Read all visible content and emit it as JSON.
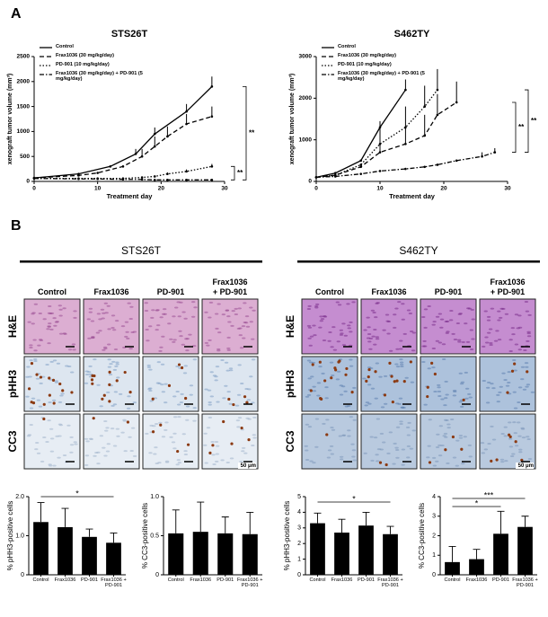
{
  "panel_labels": [
    "A",
    "B"
  ],
  "chart_data": [
    {
      "type": "line",
      "title": "STS26T",
      "xlabel": "Treatment day",
      "ylabel": "xenograft tumor volume (mm³)",
      "xlim": [
        0,
        30
      ],
      "xticks": [
        0,
        10,
        20,
        30
      ],
      "ylim": [
        0,
        2500
      ],
      "yticks": [
        0,
        500,
        1000,
        1500,
        2000,
        2500
      ],
      "legend": "upper left",
      "annotations": [
        "**",
        "**"
      ],
      "series": [
        {
          "name": "Control",
          "color": "#000000",
          "dash": "solid",
          "x": [
            0,
            7,
            12,
            16,
            19,
            24,
            28
          ],
          "values": [
            70,
            150,
            300,
            550,
            950,
            1400,
            1900
          ],
          "errors": [
            null,
            null,
            null,
            100,
            130,
            150,
            200
          ]
        },
        {
          "name": "Frax1036 (30 mg/kg/day)",
          "color": "#000000",
          "dash": "dashed",
          "x": [
            0,
            7,
            10,
            14,
            17,
            19,
            21,
            24,
            28
          ],
          "values": [
            70,
            120,
            170,
            300,
            500,
            700,
            900,
            1150,
            1300
          ],
          "errors": [
            null,
            null,
            null,
            null,
            150,
            200,
            200,
            200,
            200
          ]
        },
        {
          "name": "PD-901 (10 mg/kg/day)",
          "color": "#000000",
          "dash": "dotted",
          "x": [
            0,
            7,
            10,
            14,
            17,
            19,
            21,
            24,
            28
          ],
          "values": [
            60,
            60,
            60,
            60,
            80,
            100,
            150,
            200,
            300
          ],
          "errors": [
            null,
            null,
            null,
            null,
            null,
            null,
            30,
            40,
            50
          ]
        },
        {
          "name": "Frax1036 (30 mg/kg/day) + PD-901 (5 mg/kg/day)",
          "color": "#000000",
          "dash": "dashdot",
          "x": [
            0,
            7,
            10,
            14,
            17,
            19,
            21,
            24,
            28
          ],
          "values": [
            60,
            50,
            50,
            40,
            40,
            30,
            30,
            30,
            30
          ],
          "errors": [
            null,
            null,
            null,
            null,
            null,
            null,
            null,
            null,
            null
          ]
        }
      ]
    },
    {
      "type": "line",
      "title": "S462TY",
      "xlabel": "Treatment day",
      "ylabel": "xenograft tumor volume (mm³)",
      "xlim": [
        0,
        30
      ],
      "xticks": [
        0,
        10,
        20,
        30
      ],
      "ylim": [
        0,
        3000
      ],
      "yticks": [
        0,
        1000,
        2000,
        3000
      ],
      "legend": "upper left",
      "annotations": [
        "**",
        "**"
      ],
      "series": [
        {
          "name": "Control",
          "color": "#000000",
          "dash": "solid",
          "x": [
            0,
            3,
            7,
            10,
            14
          ],
          "values": [
            100,
            200,
            500,
            1300,
            2200
          ],
          "errors": [
            null,
            null,
            null,
            150,
            250
          ]
        },
        {
          "name": "Frax1036 (30 mg/kg/day)",
          "color": "#000000",
          "dash": "dashed",
          "x": [
            0,
            3,
            7,
            10,
            14,
            17,
            19,
            22
          ],
          "values": [
            100,
            150,
            350,
            700,
            900,
            1100,
            1600,
            1900
          ],
          "errors": [
            null,
            null,
            null,
            300,
            400,
            500,
            500,
            500
          ]
        },
        {
          "name": "PD-901 (10 mg/kg/day)",
          "color": "#000000",
          "dash": "dotted",
          "x": [
            0,
            3,
            7,
            10,
            14,
            17,
            19
          ],
          "values": [
            100,
            150,
            400,
            900,
            1300,
            1800,
            2200
          ],
          "errors": [
            null,
            null,
            null,
            400,
            500,
            500,
            500
          ]
        },
        {
          "name": "Frax1036 (30 mg/kg/day) + PD-901 (5 mg/kg/day)",
          "color": "#000000",
          "dash": "dashdot",
          "x": [
            0,
            3,
            7,
            10,
            14,
            17,
            19,
            22,
            26,
            28
          ],
          "values": [
            100,
            120,
            180,
            250,
            300,
            350,
            400,
            500,
            600,
            700
          ],
          "errors": [
            null,
            null,
            null,
            null,
            null,
            null,
            null,
            null,
            100,
            100
          ]
        }
      ]
    },
    {
      "type": "bar",
      "ylabel": "% pHH3-positive cells",
      "categories": [
        "Control",
        "Frax1036",
        "PD-901",
        "Frax1036 + PD-901"
      ],
      "values": [
        1.35,
        1.22,
        0.97,
        0.82
      ],
      "errors": [
        0.5,
        0.48,
        0.2,
        0.25
      ],
      "color": "#000000",
      "ylim": [
        0,
        2
      ],
      "yticks": [
        0,
        {
          "value": 1,
          "label": "1.0"
        },
        {
          "value": 2,
          "label": "2.0"
        }
      ],
      "annotations": [
        "*"
      ]
    },
    {
      "type": "bar",
      "ylabel": "% CC3-positive cells",
      "categories": [
        "Control",
        "Frax1036",
        "PD-901",
        "Frax1036 + PD-901"
      ],
      "values": [
        0.53,
        0.55,
        0.53,
        0.52
      ],
      "errors": [
        0.3,
        0.38,
        0.21,
        0.28
      ],
      "color": "#000000",
      "ylim": [
        0,
        1
      ],
      "yticks": [
        0,
        0.5,
        {
          "value": 1,
          "label": "1.0"
        }
      ],
      "annotations": []
    },
    {
      "type": "bar",
      "ylabel": "% pHH3-positive cells",
      "categories": [
        "Control",
        "Frax1036",
        "PD-901",
        "Frax1036 + PD-901"
      ],
      "values": [
        3.3,
        2.7,
        3.15,
        2.6
      ],
      "errors": [
        0.65,
        0.85,
        0.85,
        0.5
      ],
      "color": "#000000",
      "ylim": [
        0,
        5
      ],
      "yticks": [
        0,
        1,
        2,
        3,
        4,
        5
      ],
      "annotations": [
        "*"
      ]
    },
    {
      "type": "bar",
      "ylabel": "% CC3-positive cells",
      "categories": [
        "Control",
        "Frax1036",
        "PD-901",
        "Frax1036 + PD-901"
      ],
      "values": [
        0.65,
        0.8,
        2.1,
        2.45
      ],
      "errors": [
        0.8,
        0.5,
        1.15,
        0.55
      ],
      "color": "#000000",
      "ylim": [
        0,
        4
      ],
      "yticks": [
        0,
        1,
        2,
        3,
        4
      ],
      "annotations": [
        "***",
        "*"
      ]
    }
  ],
  "histology": [
    {
      "title": "STS26T",
      "columns": [
        "Control",
        "Frax1036",
        "PD-901",
        "Frax1036 + PD-901"
      ],
      "rows": [
        "H&E",
        "pHH3",
        "CC3"
      ],
      "scale_bar": "50 μm"
    },
    {
      "title": "S462TY",
      "columns": [
        "Control",
        "Frax1036",
        "PD-901",
        "Frax1036 + PD-901"
      ],
      "rows": [
        "H&E",
        "pHH3",
        "CC3"
      ],
      "scale_bar": "50 μm"
    }
  ]
}
